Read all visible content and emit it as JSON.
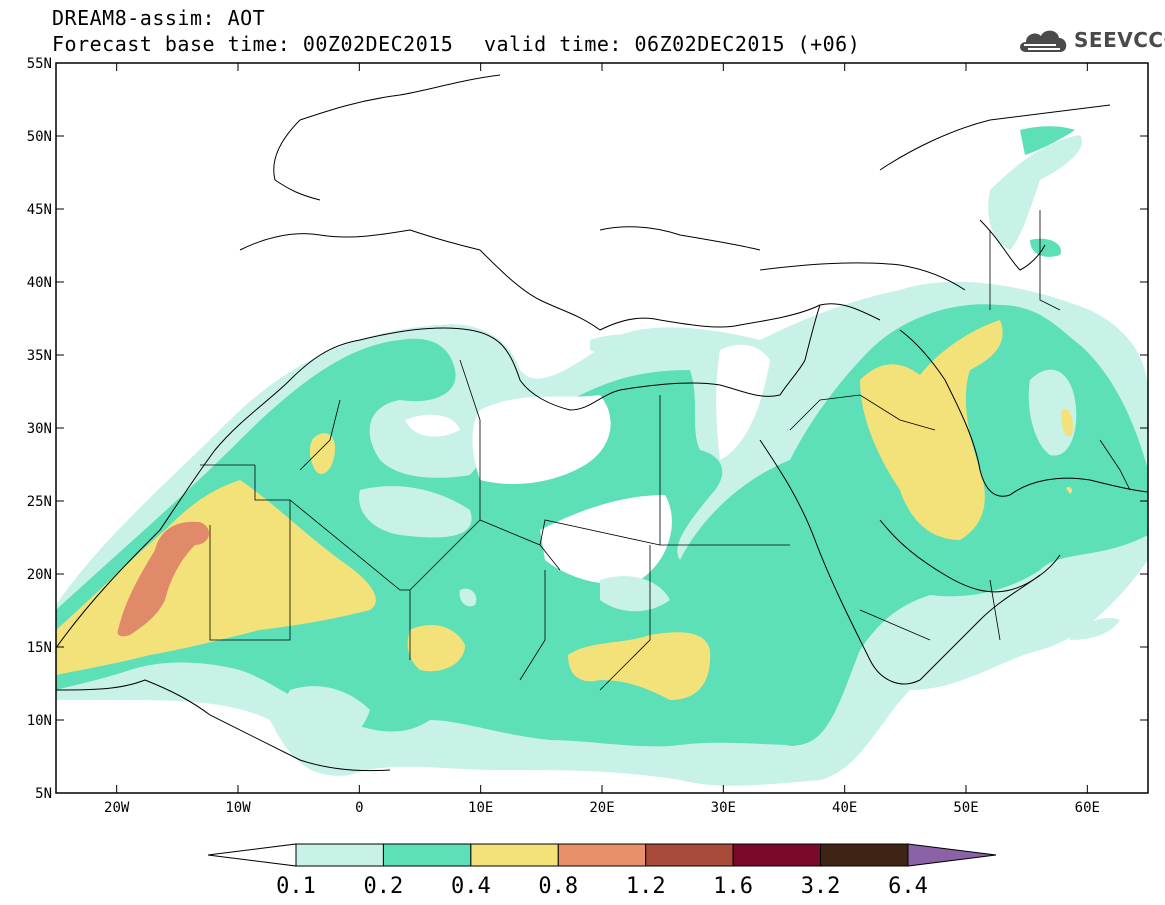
{
  "header": {
    "line1": "DREAM8-assim: AOT",
    "line2": "Forecast base time: 00Z02DEC2015",
    "line3": "valid time: 06Z02DEC2015 (+06)",
    "logo_text": "SEEVCCC"
  },
  "map": {
    "lon_range": [
      -25,
      65
    ],
    "lat_range": [
      5,
      55
    ],
    "lat_ticks": [
      {
        "value": 55,
        "label": "55N"
      },
      {
        "value": 50,
        "label": "50N"
      },
      {
        "value": 45,
        "label": "45N"
      },
      {
        "value": 40,
        "label": "40N"
      },
      {
        "value": 35,
        "label": "35N"
      },
      {
        "value": 30,
        "label": "30N"
      },
      {
        "value": 25,
        "label": "25N"
      },
      {
        "value": 20,
        "label": "20N"
      },
      {
        "value": 15,
        "label": "15N"
      },
      {
        "value": 10,
        "label": "10N"
      },
      {
        "value": 5,
        "label": "5N"
      }
    ],
    "lon_ticks": [
      {
        "value": -20,
        "label": "20W"
      },
      {
        "value": -10,
        "label": "10W"
      },
      {
        "value": 0,
        "label": "0"
      },
      {
        "value": 10,
        "label": "10E"
      },
      {
        "value": 20,
        "label": "20E"
      },
      {
        "value": 30,
        "label": "30E"
      },
      {
        "value": 40,
        "label": "40E"
      },
      {
        "value": 50,
        "label": "50E"
      },
      {
        "value": 60,
        "label": "60E"
      }
    ],
    "aot_levels": [
      "0.1",
      "0.2",
      "0.4",
      "0.8",
      "1.2",
      "1.6",
      "3.2",
      "6.4"
    ]
  },
  "colorbar": {
    "colors": [
      "#ffffff",
      "#c8f1e8",
      "#5ddfb8",
      "#f3e27a",
      "#e8906a",
      "#a84a3a",
      "#7a0a2a",
      "#3f2414",
      "#8c62a6"
    ]
  }
}
